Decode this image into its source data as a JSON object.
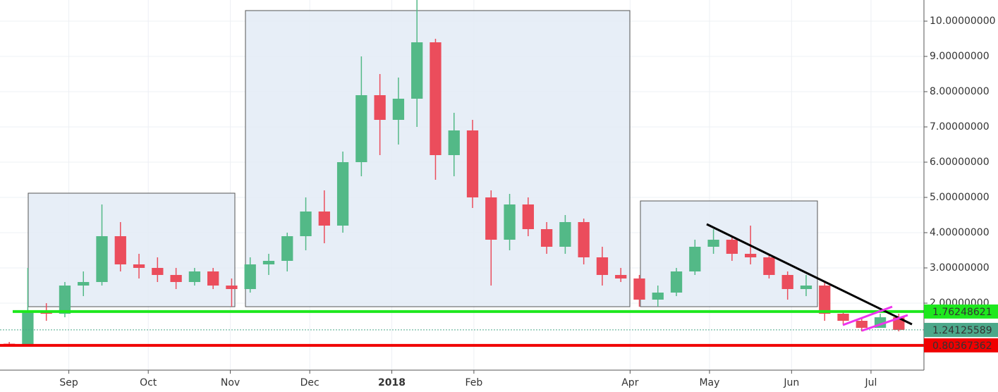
{
  "chart_data": {
    "type": "candlestick",
    "colors": {
      "up": "#53b987",
      "down": "#eb4d5c"
    },
    "grid": true,
    "xlim": [
      0,
      349
    ],
    "ylim": [
      0.1,
      10.6
    ],
    "xticks": [
      {
        "value": 26,
        "label": "Sep"
      },
      {
        "value": 56,
        "label": "Oct"
      },
      {
        "value": 87,
        "label": "Nov"
      },
      {
        "value": 117,
        "label": "Dec"
      },
      {
        "value": 148,
        "label": "2018"
      },
      {
        "value": 179,
        "label": "Feb"
      },
      {
        "value": 238,
        "label": "Apr"
      },
      {
        "value": 268,
        "label": "May"
      },
      {
        "value": 299,
        "label": "Jun"
      },
      {
        "value": 329,
        "label": "Jul"
      }
    ],
    "yticks": [
      {
        "value": 2,
        "label": "2.00000000"
      },
      {
        "value": 3,
        "label": "3.00000000"
      },
      {
        "value": 4,
        "label": "4.00000000"
      },
      {
        "value": 5,
        "label": "5.00000000"
      },
      {
        "value": 6,
        "label": "6.00000000"
      },
      {
        "value": 7,
        "label": "7.00000000"
      },
      {
        "value": 8,
        "label": "8.00000000"
      },
      {
        "value": 9,
        "label": "9.00000000"
      },
      {
        "value": 10,
        "label": "10.00000000"
      }
    ],
    "x": [
      3.5,
      10.5,
      17.5,
      24.5,
      31.5,
      38.5,
      45.5,
      52.5,
      59.5,
      66.5,
      73.5,
      80.5,
      87.5,
      94.5,
      101.5,
      108.5,
      115.5,
      122.5,
      129.5,
      136.5,
      143.5,
      150.5,
      157.5,
      164.5,
      171.5,
      178.5,
      185.5,
      192.5,
      199.5,
      206.5,
      213.5,
      220.5,
      227.5,
      234.5,
      241.5,
      248.5,
      255.5,
      262.5,
      269.5,
      276.5,
      283.5,
      290.5,
      297.5,
      304.5,
      311.5,
      318.5,
      325.5,
      332.5,
      339.5
    ],
    "open": [
      0.85,
      0.84,
      1.8,
      1.7,
      2.5,
      2.6,
      3.9,
      3.1,
      3.0,
      2.8,
      2.6,
      2.9,
      2.5,
      2.4,
      3.1,
      3.2,
      3.9,
      4.6,
      4.2,
      6.0,
      7.9,
      7.2,
      7.8,
      9.4,
      6.2,
      6.9,
      5.0,
      3.8,
      4.8,
      4.1,
      3.6,
      4.3,
      3.3,
      2.8,
      2.7,
      2.1,
      2.3,
      2.9,
      3.6,
      3.8,
      3.4,
      3.3,
      2.8,
      2.4,
      2.5,
      1.7,
      1.5,
      1.3,
      1.6
    ],
    "high": [
      0.9,
      3.0,
      2.0,
      2.6,
      2.9,
      4.8,
      4.3,
      3.4,
      3.3,
      3.0,
      3.0,
      3.0,
      2.7,
      3.3,
      3.4,
      4.0,
      5.0,
      5.2,
      6.3,
      9.0,
      8.5,
      8.4,
      10.6,
      9.5,
      7.4,
      7.2,
      5.2,
      5.1,
      5.0,
      4.3,
      4.5,
      4.4,
      3.6,
      3.0,
      2.8,
      2.5,
      3.0,
      3.8,
      4.1,
      3.9,
      4.2,
      3.4,
      2.9,
      2.8,
      2.6,
      1.8,
      1.6,
      1.7,
      1.7
    ],
    "low": [
      0.78,
      0.84,
      1.5,
      1.6,
      2.2,
      2.5,
      2.9,
      2.7,
      2.6,
      2.4,
      2.5,
      2.4,
      1.9,
      2.3,
      2.8,
      2.9,
      3.5,
      3.7,
      4.0,
      5.6,
      6.2,
      6.5,
      7.0,
      5.5,
      5.6,
      4.7,
      2.5,
      3.5,
      3.9,
      3.4,
      3.4,
      3.1,
      2.5,
      2.6,
      1.9,
      1.9,
      2.2,
      2.8,
      3.4,
      3.2,
      3.1,
      2.7,
      2.1,
      2.2,
      1.5,
      1.4,
      1.2,
      1.3,
      1.2
    ],
    "close": [
      0.84,
      1.8,
      1.7,
      2.5,
      2.6,
      3.9,
      3.1,
      3.0,
      2.8,
      2.6,
      2.9,
      2.5,
      2.4,
      3.1,
      3.2,
      3.9,
      4.6,
      4.2,
      6.0,
      7.9,
      7.2,
      7.8,
      9.4,
      6.2,
      6.9,
      5.0,
      3.8,
      4.8,
      4.1,
      3.6,
      4.3,
      3.3,
      2.8,
      2.7,
      2.1,
      2.3,
      2.9,
      3.6,
      3.8,
      3.4,
      3.3,
      2.8,
      2.4,
      2.5,
      1.7,
      1.5,
      1.3,
      1.6,
      1.24
    ],
    "price_lines": [
      {
        "value": 1.76248621,
        "color": "#1ee81e",
        "label_color": "#1ee81e"
      },
      {
        "value": 1.24125589,
        "color": "#4ca88a",
        "label_color": "#4ca88a"
      },
      {
        "value": 0.80367362,
        "color": "#f00000",
        "label_color": "#f00000"
      }
    ]
  }
}
